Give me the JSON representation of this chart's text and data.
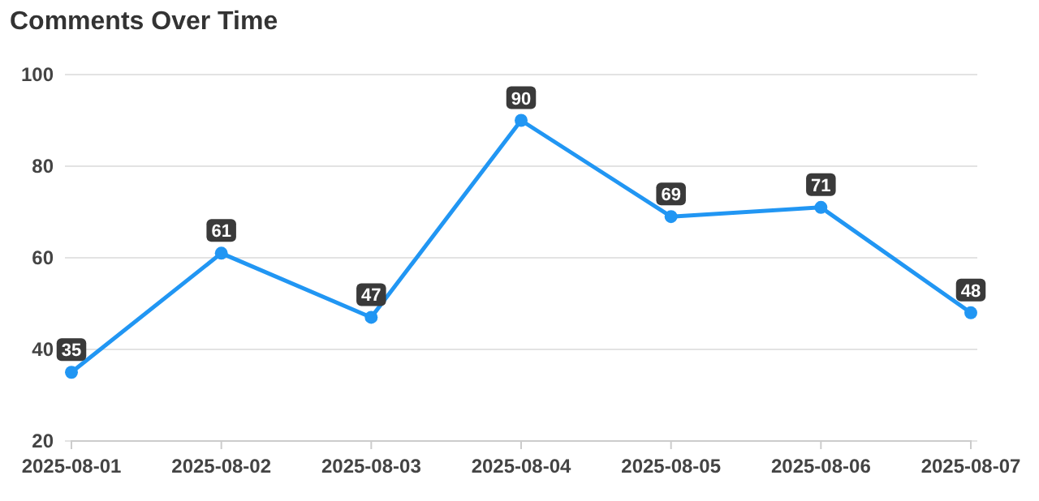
{
  "chart_data": {
    "type": "line",
    "title": "Comments Over Time",
    "categories": [
      "2025-08-01",
      "2025-08-02",
      "2025-08-03",
      "2025-08-04",
      "2025-08-05",
      "2025-08-06",
      "2025-08-07"
    ],
    "series": [
      {
        "color": "#2196f3",
        "values": [
          35,
          61,
          47,
          90,
          69,
          71,
          48
        ]
      }
    ],
    "ylim": [
      20,
      100
    ],
    "yticks": [
      20,
      40,
      60,
      80,
      100
    ],
    "grid": "y",
    "marker": "circle",
    "line_style": "solid",
    "data_labels": true
  }
}
